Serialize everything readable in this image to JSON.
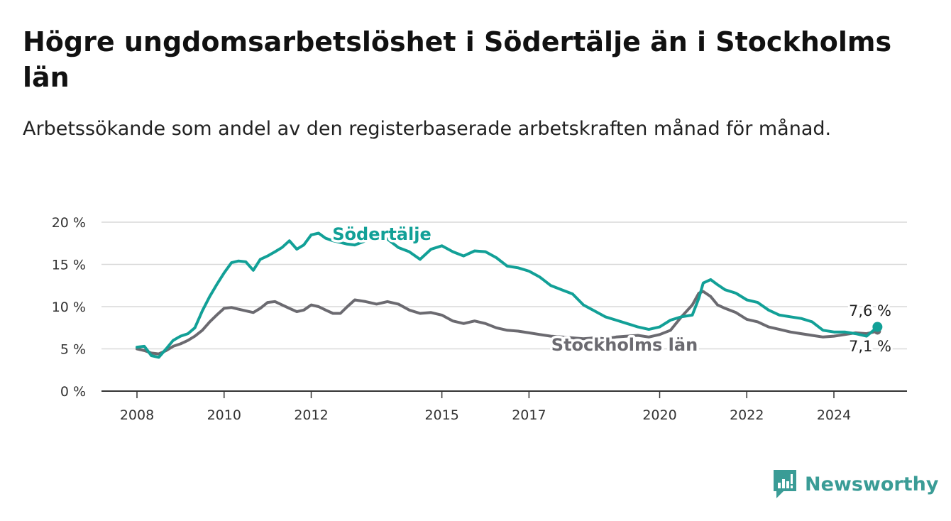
{
  "title": "Högre ungdomsarbetslöshet i Södertälje än i Stockholms län",
  "subtitle": "Arbetssökande som andel av den registerbaserade arbetskraften månad för månad.",
  "brand": {
    "name": "Newsworthy",
    "icon": "newsworthy-logo-icon",
    "color": "#3a9c96"
  },
  "colors": {
    "sodertalje": "#12a097",
    "stockholm": "#6b6a70",
    "grid": "#d9d9d9",
    "axis": "#333333"
  },
  "chart_data": {
    "type": "line",
    "ylim": [
      0,
      20
    ],
    "y_ticks": [
      0,
      5,
      10,
      15,
      20
    ],
    "y_tick_labels": [
      "0 %",
      "5 %",
      "10 %",
      "15 %",
      "20 %"
    ],
    "x_ticks": [
      2008,
      2010,
      2012,
      2015,
      2017,
      2020,
      2022,
      2024
    ],
    "x_tick_labels": [
      "2008",
      "2010",
      "2012",
      "2015",
      "2017",
      "2020",
      "2022",
      "2024"
    ],
    "grid": "horizontal",
    "series": [
      {
        "name": "Södertälje",
        "end_label": "7,6 %",
        "points": [
          [
            2008.0,
            5.2
          ],
          [
            2008.17,
            5.3
          ],
          [
            2008.33,
            4.2
          ],
          [
            2008.5,
            4.0
          ],
          [
            2008.67,
            5.0
          ],
          [
            2008.83,
            6.0
          ],
          [
            2009.0,
            6.5
          ],
          [
            2009.17,
            6.8
          ],
          [
            2009.33,
            7.5
          ],
          [
            2009.5,
            9.5
          ],
          [
            2009.67,
            11.2
          ],
          [
            2009.83,
            12.6
          ],
          [
            2010.0,
            14.0
          ],
          [
            2010.17,
            15.2
          ],
          [
            2010.33,
            15.4
          ],
          [
            2010.5,
            15.3
          ],
          [
            2010.67,
            14.3
          ],
          [
            2010.83,
            15.6
          ],
          [
            2011.0,
            16.0
          ],
          [
            2011.17,
            16.5
          ],
          [
            2011.33,
            17.0
          ],
          [
            2011.5,
            17.8
          ],
          [
            2011.67,
            16.8
          ],
          [
            2011.83,
            17.3
          ],
          [
            2012.0,
            18.5
          ],
          [
            2012.17,
            18.7
          ],
          [
            2012.33,
            18.1
          ],
          [
            2012.5,
            17.8
          ],
          [
            2012.67,
            17.6
          ],
          [
            2012.83,
            17.4
          ],
          [
            2013.0,
            17.3
          ],
          [
            2013.25,
            17.8
          ],
          [
            2013.5,
            18.5
          ],
          [
            2013.75,
            18.0
          ],
          [
            2014.0,
            17.0
          ],
          [
            2014.25,
            16.5
          ],
          [
            2014.5,
            15.6
          ],
          [
            2014.75,
            16.8
          ],
          [
            2015.0,
            17.2
          ],
          [
            2015.25,
            16.5
          ],
          [
            2015.5,
            16.0
          ],
          [
            2015.75,
            16.6
          ],
          [
            2016.0,
            16.5
          ],
          [
            2016.25,
            15.8
          ],
          [
            2016.5,
            14.8
          ],
          [
            2016.75,
            14.6
          ],
          [
            2017.0,
            14.2
          ],
          [
            2017.25,
            13.5
          ],
          [
            2017.5,
            12.5
          ],
          [
            2017.75,
            12.0
          ],
          [
            2018.0,
            11.5
          ],
          [
            2018.25,
            10.2
          ],
          [
            2018.5,
            9.5
          ],
          [
            2018.75,
            8.8
          ],
          [
            2019.0,
            8.4
          ],
          [
            2019.25,
            8.0
          ],
          [
            2019.5,
            7.6
          ],
          [
            2019.75,
            7.3
          ],
          [
            2020.0,
            7.6
          ],
          [
            2020.25,
            8.4
          ],
          [
            2020.5,
            8.8
          ],
          [
            2020.75,
            9.0
          ],
          [
            2020.9,
            11.0
          ],
          [
            2021.0,
            12.8
          ],
          [
            2021.17,
            13.2
          ],
          [
            2021.33,
            12.6
          ],
          [
            2021.5,
            12.0
          ],
          [
            2021.75,
            11.6
          ],
          [
            2022.0,
            10.8
          ],
          [
            2022.25,
            10.5
          ],
          [
            2022.5,
            9.6
          ],
          [
            2022.75,
            9.0
          ],
          [
            2023.0,
            8.8
          ],
          [
            2023.25,
            8.6
          ],
          [
            2023.5,
            8.2
          ],
          [
            2023.75,
            7.2
          ],
          [
            2024.0,
            7.0
          ],
          [
            2024.25,
            7.0
          ],
          [
            2024.5,
            6.8
          ],
          [
            2024.75,
            6.5
          ],
          [
            2025.0,
            7.6
          ]
        ]
      },
      {
        "name": "Stockholms län",
        "end_label": "7,1 %",
        "points": [
          [
            2008.0,
            5.0
          ],
          [
            2008.17,
            4.8
          ],
          [
            2008.33,
            4.5
          ],
          [
            2008.5,
            4.4
          ],
          [
            2008.67,
            4.8
          ],
          [
            2008.83,
            5.3
          ],
          [
            2009.0,
            5.6
          ],
          [
            2009.17,
            6.0
          ],
          [
            2009.33,
            6.5
          ],
          [
            2009.5,
            7.2
          ],
          [
            2009.67,
            8.2
          ],
          [
            2009.83,
            9.0
          ],
          [
            2010.0,
            9.8
          ],
          [
            2010.17,
            9.9
          ],
          [
            2010.33,
            9.7
          ],
          [
            2010.5,
            9.5
          ],
          [
            2010.67,
            9.3
          ],
          [
            2010.83,
            9.8
          ],
          [
            2011.0,
            10.5
          ],
          [
            2011.17,
            10.6
          ],
          [
            2011.33,
            10.2
          ],
          [
            2011.5,
            9.8
          ],
          [
            2011.67,
            9.4
          ],
          [
            2011.83,
            9.6
          ],
          [
            2012.0,
            10.2
          ],
          [
            2012.17,
            10.0
          ],
          [
            2012.33,
            9.6
          ],
          [
            2012.5,
            9.2
          ],
          [
            2012.67,
            9.2
          ],
          [
            2012.83,
            10.0
          ],
          [
            2013.0,
            10.8
          ],
          [
            2013.25,
            10.6
          ],
          [
            2013.5,
            10.3
          ],
          [
            2013.75,
            10.6
          ],
          [
            2014.0,
            10.3
          ],
          [
            2014.25,
            9.6
          ],
          [
            2014.5,
            9.2
          ],
          [
            2014.75,
            9.3
          ],
          [
            2015.0,
            9.0
          ],
          [
            2015.25,
            8.3
          ],
          [
            2015.5,
            8.0
          ],
          [
            2015.75,
            8.3
          ],
          [
            2016.0,
            8.0
          ],
          [
            2016.25,
            7.5
          ],
          [
            2016.5,
            7.2
          ],
          [
            2016.75,
            7.1
          ],
          [
            2017.0,
            6.9
          ],
          [
            2017.25,
            6.7
          ],
          [
            2017.5,
            6.5
          ],
          [
            2017.75,
            6.4
          ],
          [
            2018.0,
            6.3
          ],
          [
            2018.25,
            6.2
          ],
          [
            2018.5,
            6.3
          ],
          [
            2018.75,
            6.2
          ],
          [
            2019.0,
            6.4
          ],
          [
            2019.25,
            6.5
          ],
          [
            2019.5,
            6.6
          ],
          [
            2019.75,
            6.4
          ],
          [
            2020.0,
            6.7
          ],
          [
            2020.25,
            7.2
          ],
          [
            2020.5,
            8.8
          ],
          [
            2020.75,
            10.2
          ],
          [
            2020.9,
            11.6
          ],
          [
            2021.0,
            11.8
          ],
          [
            2021.17,
            11.2
          ],
          [
            2021.33,
            10.2
          ],
          [
            2021.5,
            9.8
          ],
          [
            2021.75,
            9.3
          ],
          [
            2022.0,
            8.5
          ],
          [
            2022.25,
            8.2
          ],
          [
            2022.5,
            7.6
          ],
          [
            2022.75,
            7.3
          ],
          [
            2023.0,
            7.0
          ],
          [
            2023.25,
            6.8
          ],
          [
            2023.5,
            6.6
          ],
          [
            2023.75,
            6.4
          ],
          [
            2024.0,
            6.5
          ],
          [
            2024.25,
            6.7
          ],
          [
            2024.5,
            6.9
          ],
          [
            2024.75,
            6.8
          ],
          [
            2025.0,
            7.1
          ]
        ]
      }
    ]
  }
}
